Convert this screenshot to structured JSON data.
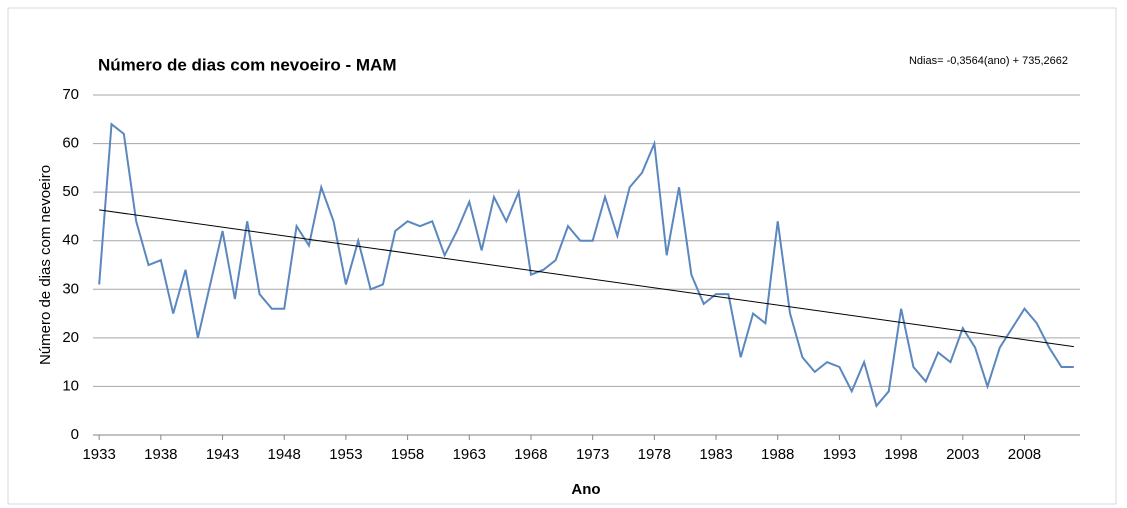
{
  "chart_data": {
    "type": "line",
    "title": "Número de dias com nevoeiro - MAM",
    "annotation": "Ndias= -0,3564(ano) + 735,2662",
    "x_label": "Ano",
    "y_label": "Número de dias com nevoeiro",
    "x": [
      1933,
      1934,
      1935,
      1936,
      1937,
      1938,
      1939,
      1940,
      1941,
      1942,
      1943,
      1944,
      1945,
      1946,
      1947,
      1948,
      1949,
      1950,
      1951,
      1952,
      1953,
      1954,
      1955,
      1956,
      1957,
      1958,
      1959,
      1960,
      1961,
      1962,
      1963,
      1964,
      1965,
      1966,
      1967,
      1968,
      1969,
      1970,
      1971,
      1972,
      1973,
      1974,
      1975,
      1976,
      1977,
      1978,
      1979,
      1980,
      1981,
      1982,
      1983,
      1984,
      1985,
      1986,
      1987,
      1988,
      1989,
      1990,
      1991,
      1992,
      1993,
      1994,
      1995,
      1996,
      1997,
      1998,
      1999,
      2000,
      2001,
      2002,
      2003,
      2004,
      2005,
      2006,
      2007,
      2008,
      2009,
      2010,
      2011,
      2012
    ],
    "series": [
      {
        "color": "#5b87c0",
        "values": [
          31,
          64,
          62,
          44,
          35,
          36,
          25,
          34,
          20,
          31,
          42,
          28,
          44,
          29,
          26,
          26,
          43,
          39,
          51,
          44,
          31,
          40,
          30,
          31,
          42,
          44,
          43,
          44,
          37,
          42,
          48,
          38,
          49,
          44,
          50,
          33,
          34,
          36,
          43,
          40,
          40,
          49,
          41,
          51,
          54,
          60,
          37,
          51,
          33,
          27,
          29,
          29,
          16,
          25,
          23,
          44,
          25,
          16,
          13,
          15,
          14,
          9,
          15,
          6,
          9,
          26,
          14,
          11,
          17,
          15,
          22,
          18,
          10,
          18,
          22,
          26,
          23,
          18,
          14,
          14
        ]
      }
    ],
    "trend": {
      "slope": -0.3564,
      "intercept": 735.2662,
      "color": "#000000"
    },
    "xlim": [
      1932.5,
      2012.5
    ],
    "xticks": [
      1933,
      1938,
      1943,
      1948,
      1953,
      1958,
      1963,
      1968,
      1973,
      1978,
      1983,
      1988,
      1993,
      1998,
      2003,
      2008
    ],
    "ylim": [
      0,
      70
    ],
    "yticks": [
      0,
      10,
      20,
      30,
      40,
      50,
      60,
      70
    ],
    "grid": true
  }
}
